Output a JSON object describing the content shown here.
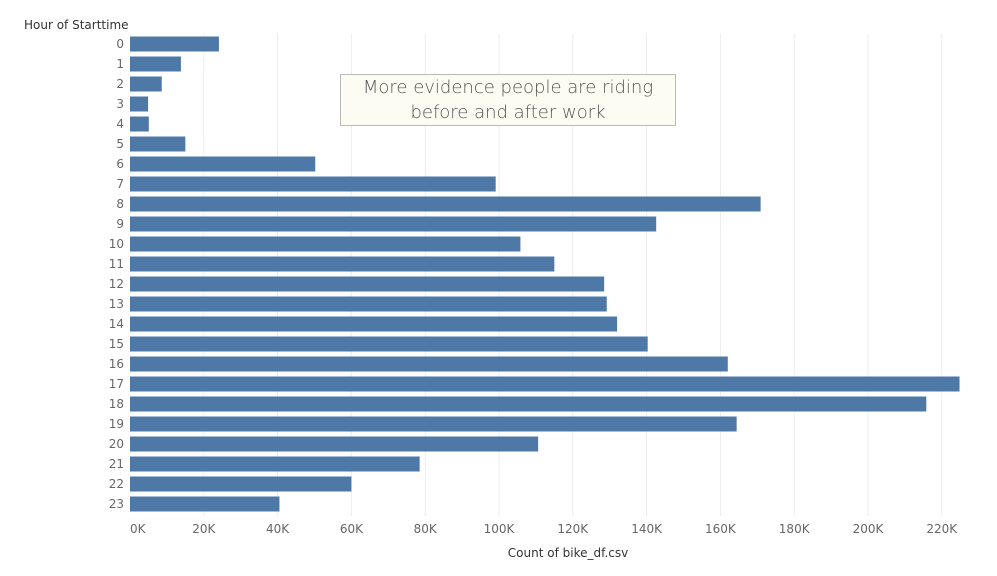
{
  "chart_data": {
    "type": "bar",
    "orientation": "horizontal",
    "y_title": "Hour of Starttime",
    "x_title": "Count of bike_df.csv",
    "categories": [
      "0",
      "1",
      "2",
      "3",
      "4",
      "5",
      "6",
      "7",
      "8",
      "9",
      "10",
      "11",
      "12",
      "13",
      "14",
      "15",
      "16",
      "17",
      "18",
      "19",
      "20",
      "21",
      "22",
      "23"
    ],
    "values": [
      24100,
      13800,
      8600,
      4900,
      5100,
      15000,
      50200,
      99100,
      170900,
      142600,
      105800,
      115000,
      128500,
      129200,
      132000,
      140300,
      162000,
      224800,
      215800,
      164400,
      110600,
      78500,
      60000,
      40500
    ],
    "xlim": [
      0,
      230000
    ],
    "x_ticks": [
      0,
      20000,
      40000,
      60000,
      80000,
      100000,
      120000,
      140000,
      160000,
      180000,
      200000,
      220000
    ],
    "x_tick_labels": [
      "0K",
      "20K",
      "40K",
      "60K",
      "80K",
      "100K",
      "120K",
      "140K",
      "160K",
      "180K",
      "200K",
      "220K"
    ],
    "bar_color": "#4e79a7",
    "grid": "vertical",
    "annotation": "More evidence people are riding before and after work"
  }
}
